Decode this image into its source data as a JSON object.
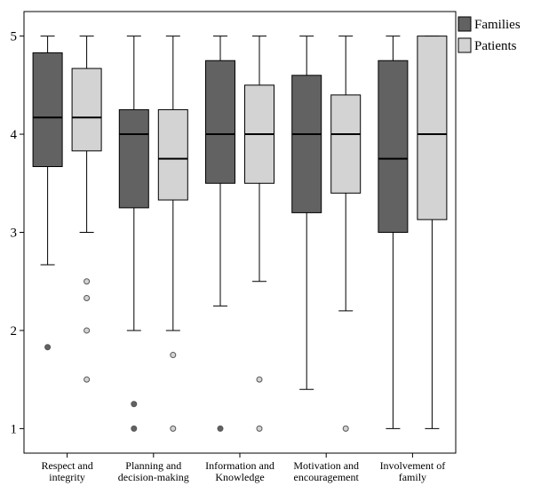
{
  "chart_data": {
    "type": "box",
    "title": "",
    "xlabel": "",
    "ylabel": "",
    "ylim": [
      0.75,
      5.25
    ],
    "yticks": [
      1,
      2,
      3,
      4,
      5
    ],
    "grid": false,
    "legend_placement": "top-right",
    "categories": [
      [
        "Respect and",
        "integrity"
      ],
      [
        "Planning and",
        "decision-making"
      ],
      [
        "Information and",
        "Knowledge"
      ],
      [
        "Motivation and",
        "encouragement"
      ],
      [
        "Involvement of",
        "family"
      ]
    ],
    "series": [
      {
        "name": "Families",
        "color": "#626262",
        "boxes": [
          {
            "whisker_low": 2.67,
            "q1": 3.67,
            "median": 4.17,
            "q3": 4.83,
            "whisker_high": 5,
            "outliers": [
              1.83
            ]
          },
          {
            "whisker_low": 2.0,
            "q1": 3.25,
            "median": 4.0,
            "q3": 4.25,
            "whisker_high": 5,
            "outliers": [
              1.25,
              1.0
            ]
          },
          {
            "whisker_low": 2.25,
            "q1": 3.5,
            "median": 4.0,
            "q3": 4.75,
            "whisker_high": 5,
            "outliers": [
              1.0
            ]
          },
          {
            "whisker_low": 1.4,
            "q1": 3.2,
            "median": 4.0,
            "q3": 4.6,
            "whisker_high": 5,
            "outliers": []
          },
          {
            "whisker_low": 1.0,
            "q1": 3.0,
            "median": 3.75,
            "q3": 4.75,
            "whisker_high": 5,
            "outliers": []
          }
        ]
      },
      {
        "name": "Patients",
        "color": "#d3d3d3",
        "boxes": [
          {
            "whisker_low": 3.0,
            "q1": 3.83,
            "median": 4.17,
            "q3": 4.67,
            "whisker_high": 5,
            "outliers": [
              2.5,
              2.33,
              2.0,
              1.5
            ]
          },
          {
            "whisker_low": 2.0,
            "q1": 3.33,
            "median": 3.75,
            "q3": 4.25,
            "whisker_high": 5,
            "outliers": [
              1.75,
              1.0
            ]
          },
          {
            "whisker_low": 2.5,
            "q1": 3.5,
            "median": 4.0,
            "q3": 4.5,
            "whisker_high": 5,
            "outliers": [
              1.5,
              1.0
            ]
          },
          {
            "whisker_low": 2.2,
            "q1": 3.4,
            "median": 4.0,
            "q3": 4.4,
            "whisker_high": 5,
            "outliers": [
              1.0
            ]
          },
          {
            "whisker_low": 1.0,
            "q1": 3.13,
            "median": 4.0,
            "q3": 5.0,
            "whisker_high": 5,
            "outliers": []
          }
        ]
      }
    ]
  }
}
